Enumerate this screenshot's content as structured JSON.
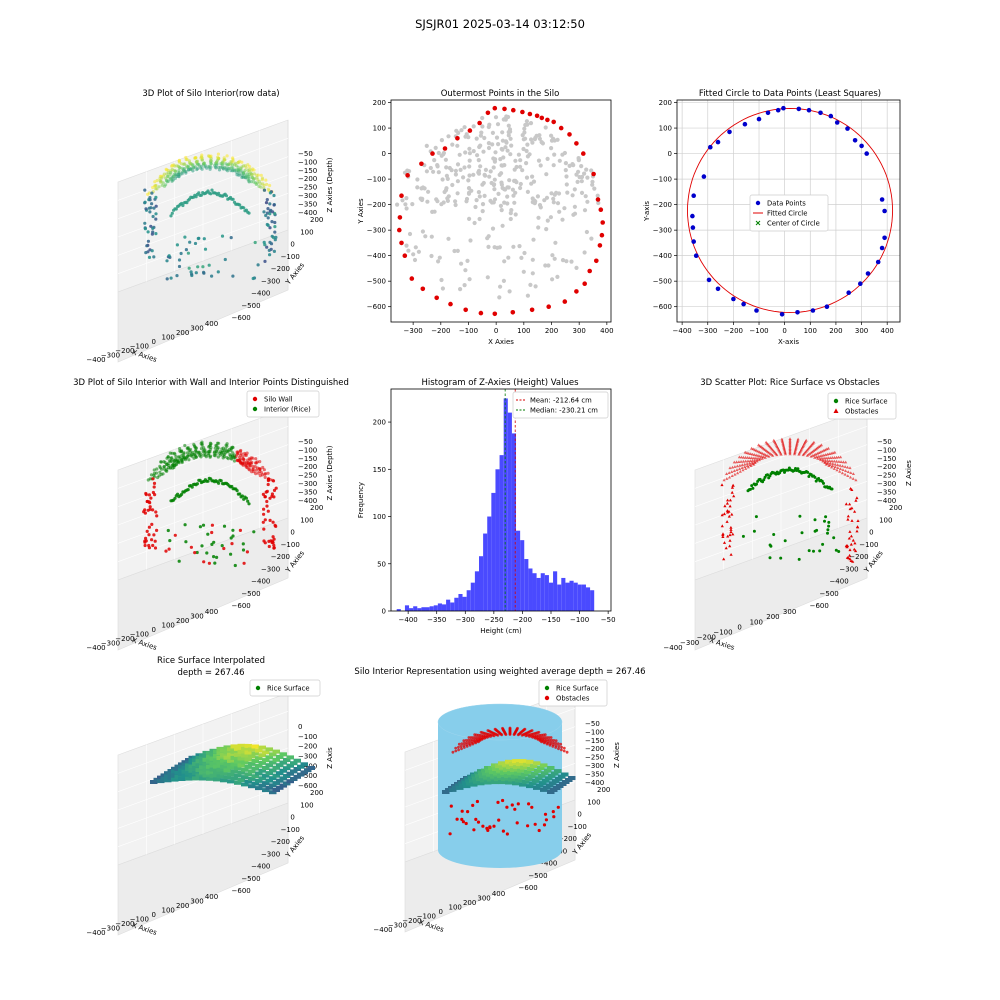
{
  "figure": {
    "title": "SJSJR01 2025-03-14 03:12:50"
  },
  "colors": {
    "wall": "#e00000",
    "interior": "#008000",
    "outer": "#e00000",
    "inner": "#c8c8c8",
    "data_points": "#0000cc",
    "fitted_circle": "#e00000",
    "center": "#008000",
    "hist_bar": "#4a4aff",
    "mean_line": "#d40000",
    "median_line": "#007a00",
    "cylinder": "#87ceeb"
  },
  "panels": [
    {
      "title": "3D Plot of Silo Interior(row data)",
      "type": "scatter3d",
      "xlabel": "X Axies",
      "ylabel": "Y Axies",
      "zlabel": "Z Axies (Depth)",
      "xticks": [
        "−400",
        "−300",
        "−200",
        "−100",
        "0",
        "100",
        "200",
        "300",
        "400"
      ],
      "yticks": [
        "200",
        "100",
        "0",
        "−100",
        "−200",
        "−300",
        "−400",
        "−500",
        "−600"
      ],
      "zticks": [
        "−50",
        "−100",
        "−150",
        "−200",
        "−250",
        "−300",
        "−350",
        "−400"
      ],
      "colormap": "viridis"
    },
    {
      "title": "Outermost Points in the Silo",
      "type": "scatter",
      "xlabel": "X Axies",
      "ylabel": "Y Axies",
      "xlim": [
        -380,
        415
      ],
      "ylim": [
        -660,
        210
      ],
      "xticks": [
        -300,
        -200,
        -100,
        0,
        100,
        200,
        300,
        400
      ],
      "yticks": [
        200,
        100,
        0,
        -100,
        -200,
        -300,
        -400,
        -500,
        -600
      ]
    },
    {
      "title": "Fitted Circle to Data Points (Least Squares)",
      "type": "scatter",
      "xlabel": "X-axis",
      "ylabel": "Y-axis",
      "xlim": [
        -420,
        450
      ],
      "ylim": [
        -660,
        210
      ],
      "xticks": [
        -400,
        -300,
        -200,
        -100,
        0,
        100,
        200,
        300,
        400
      ],
      "yticks": [
        200,
        100,
        0,
        -100,
        -200,
        -300,
        -400,
        -500,
        -600
      ],
      "grid": true,
      "legend": [
        "Data Points",
        "Fitted Circle",
        "Center of Circle"
      ]
    },
    {
      "title": "3D Plot of Silo Interior with Wall and Interior Points Distinguished",
      "type": "scatter3d",
      "xlabel": "X Axies",
      "ylabel": "Y Axies",
      "zlabel": "Z Axies (Depth)",
      "xticks": [
        "−400",
        "−300",
        "−200",
        "−100",
        "0",
        "100",
        "200",
        "300",
        "400"
      ],
      "yticks": [
        "200",
        "100",
        "0",
        "−100",
        "−200",
        "−300",
        "−400",
        "−500",
        "−600"
      ],
      "zticks": [
        "−50",
        "−100",
        "−150",
        "−200",
        "−250",
        "−300",
        "−350",
        "−400"
      ],
      "legend": [
        "Silo Wall",
        "Interior (Rice)"
      ]
    },
    {
      "title": "Histogram of Z-Axies (Height) Values",
      "type": "bar",
      "xlabel": "Height (cm)",
      "ylabel": "Frequency",
      "xticks": [
        -400,
        -350,
        -300,
        -250,
        -200,
        -150,
        -100,
        -50
      ],
      "yticks": [
        0,
        50,
        100,
        150,
        200
      ],
      "legend": [
        "Mean: -212.64 cm",
        "Median: -230.21 cm"
      ]
    },
    {
      "title": "3D Scatter Plot: Rice Surface vs Obstacles",
      "type": "scatter3d",
      "xlabel": "X Axies",
      "ylabel": "Y Axies",
      "zlabel": "Z Axies",
      "xticks": [
        "−400",
        "−300",
        "−200",
        "−100",
        "0",
        "100",
        "200",
        "300"
      ],
      "yticks": [
        "200",
        "100",
        "0",
        "−100",
        "−200",
        "−300",
        "−400",
        "−500",
        "−600"
      ],
      "zticks": [
        "−50",
        "−100",
        "−150",
        "−200",
        "−250",
        "−300",
        "−350",
        "−400"
      ],
      "legend": [
        "Rice Surface",
        "Obstacles"
      ]
    },
    {
      "title": "Rice Surface Interpolated",
      "subtitle": "depth = 267.46",
      "type": "surface3d",
      "xlabel": "X Axies",
      "ylabel": "Y Axies",
      "zlabel": "Z Axis",
      "xticks": [
        "−400",
        "−300",
        "−200",
        "−100",
        "0",
        "100",
        "200",
        "300",
        "400"
      ],
      "yticks": [
        "200",
        "100",
        "0",
        "−100",
        "−200",
        "−300",
        "−400",
        "−500",
        "−600"
      ],
      "zticks": [
        "0",
        "−100",
        "−200",
        "−300",
        "−400",
        "−500",
        "−600"
      ],
      "legend": [
        "Rice Surface"
      ]
    },
    {
      "title": "Silo Interior Representation using weighted average depth = 267.46",
      "type": "scatter3d",
      "xlabel": "X Axies",
      "ylabel": "Y Axies",
      "zlabel": "Z Axies",
      "xticks": [
        "−400",
        "−300",
        "−200",
        "−100",
        "0",
        "100",
        "200",
        "300",
        "400"
      ],
      "yticks": [
        "200",
        "100",
        "0",
        "−100",
        "−200",
        "−300",
        "−400",
        "−500",
        "−600"
      ],
      "zticks": [
        "−50",
        "−100",
        "−150",
        "−200",
        "−250",
        "−300",
        "−350",
        "−400"
      ],
      "legend": [
        "Rice Surface",
        "Obstacles"
      ]
    }
  ],
  "chart_data": [
    {
      "type": "scatter",
      "title": "Outermost Points in the Silo",
      "series": [
        {
          "name": "outermost",
          "x": [
            -5,
            30,
            62,
            95,
            122,
            148,
            165,
            185,
            208,
            235,
            265,
            290,
            315,
            352,
            368,
            378,
            385,
            382,
            375,
            362,
            338,
            320,
            290,
            248,
            190,
            130,
            60,
            -5,
            -55,
            -110,
            -165,
            -215,
            -265,
            -305,
            -330,
            -342,
            -350,
            -348,
            -342,
            -320,
            -270,
            -230,
            -185,
            -140,
            -95,
            -60,
            -30
          ],
          "y": [
            178,
            175,
            170,
            163,
            155,
            148,
            140,
            132,
            124,
            100,
            75,
            40,
            0,
            -80,
            -180,
            -220,
            -270,
            -320,
            -360,
            -420,
            -460,
            -510,
            -540,
            -580,
            -600,
            -612,
            -622,
            -628,
            -625,
            -612,
            -590,
            -565,
            -530,
            -490,
            -400,
            -350,
            -300,
            -250,
            -165,
            -85,
            -40,
            0,
            20,
            60,
            90,
            120,
            160
          ]
        }
      ]
    },
    {
      "type": "scatter",
      "title": "Fitted Circle to Data Points (Least Squares)",
      "series": [
        {
          "name": "Data Points",
          "x": [
            -5,
            55,
            95,
            140,
            180,
            205,
            245,
            275,
            300,
            320,
            380,
            390,
            390,
            380,
            365,
            325,
            295,
            250,
            165,
            110,
            50,
            -10,
            -110,
            -160,
            -200,
            -260,
            -295,
            -345,
            -355,
            -358,
            -360,
            -355,
            -315,
            -290,
            -260,
            -215,
            -155,
            -100,
            -65,
            -25
          ],
          "y": [
            178,
            175,
            170,
            160,
            147,
            122,
            98,
            52,
            30,
            0,
            -180,
            -225,
            -330,
            -370,
            -425,
            -470,
            -510,
            -545,
            -600,
            -615,
            -622,
            -630,
            -615,
            -590,
            -570,
            -530,
            -495,
            -400,
            -345,
            -290,
            -245,
            -165,
            -90,
            25,
            45,
            85,
            115,
            135,
            160,
            170
          ]
        },
        {
          "name": "Fitted Circle",
          "center": [
            21,
            -223
          ],
          "radius": 400
        },
        {
          "name": "Center of Circle",
          "x": [
            21
          ],
          "y": [
            -223
          ]
        }
      ]
    },
    {
      "type": "bar",
      "title": "Histogram of Z-Axies (Height) Values",
      "x_start": -420,
      "bin_width": 7.2,
      "values": [
        2,
        0,
        6,
        3,
        5,
        3,
        4,
        4,
        5,
        6,
        8,
        7,
        12,
        9,
        14,
        18,
        15,
        22,
        30,
        42,
        58,
        82,
        100,
        125,
        150,
        165,
        225,
        210,
        188,
        85,
        75,
        55,
        45,
        40,
        35,
        40,
        38,
        30,
        42,
        28,
        35,
        30,
        32,
        30,
        28,
        28,
        25,
        22
      ],
      "mean": -212.64,
      "median": -230.21,
      "xlim": [
        -430,
        -45
      ],
      "ylim": [
        0,
        235
      ]
    }
  ]
}
